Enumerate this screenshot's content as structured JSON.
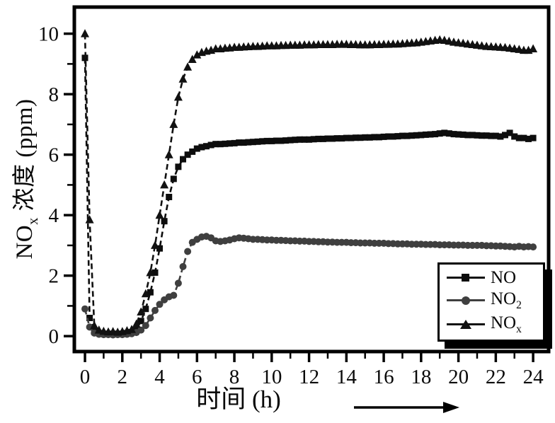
{
  "chart_data": {
    "type": "line",
    "title": "",
    "xlabel": "时间 (h)",
    "ylabel": "NOx 浓度 (ppm)",
    "ylabel_parts": {
      "base": "NO",
      "sub": "x",
      "rest": " 浓度 (ppm)"
    },
    "xlim": [
      -0.57,
      24.83
    ],
    "ylim": [
      -0.51,
      10.88
    ],
    "xticks": [
      0,
      2,
      4,
      6,
      8,
      10,
      12,
      14,
      16,
      18,
      20,
      22,
      24
    ],
    "yticks": [
      0,
      2,
      4,
      6,
      8,
      10
    ],
    "xminor": [
      1,
      3,
      5,
      7,
      9,
      11,
      13,
      15,
      17,
      19,
      21,
      23
    ],
    "yminor": [
      1,
      3,
      5,
      7,
      9
    ],
    "grid": false,
    "legend_position": "inside-bottom-right",
    "colors": {
      "no": "#0d0d0d",
      "no2": "#3f3f3f",
      "nox": "#111111",
      "axis": "#000000"
    },
    "x": [
      0,
      0.25,
      0.5,
      0.75,
      1,
      1.25,
      1.5,
      1.75,
      2,
      2.25,
      2.5,
      2.75,
      3,
      3.25,
      3.5,
      3.75,
      4,
      4.25,
      4.5,
      4.75,
      5,
      5.25,
      5.5,
      5.75,
      6,
      6.25,
      6.5,
      6.75,
      7,
      7.25,
      7.5,
      7.75,
      8,
      8.25,
      8.5,
      8.75,
      9,
      9.25,
      9.5,
      9.75,
      10,
      10.25,
      10.5,
      10.75,
      11,
      11.25,
      11.5,
      11.75,
      12,
      12.25,
      12.5,
      12.75,
      13,
      13.25,
      13.5,
      13.75,
      14,
      14.25,
      14.5,
      14.75,
      15,
      15.25,
      15.5,
      15.75,
      16,
      16.25,
      16.5,
      16.75,
      17,
      17.25,
      17.5,
      17.75,
      18,
      18.25,
      18.5,
      18.75,
      19,
      19.25,
      19.5,
      19.75,
      20,
      20.25,
      20.5,
      20.75,
      21,
      21.25,
      21.5,
      21.75,
      22,
      22.25,
      22.5,
      22.75,
      23,
      23.25,
      23.5,
      23.75,
      24
    ],
    "series": [
      {
        "name": "NO",
        "marker": "square",
        "color": "#0d0d0d",
        "values": [
          9.2,
          0.6,
          0.15,
          0.1,
          0.08,
          0.07,
          0.08,
          0.07,
          0.08,
          0.1,
          0.13,
          0.22,
          0.5,
          0.9,
          1.45,
          2.1,
          2.9,
          3.8,
          4.6,
          5.2,
          5.6,
          5.85,
          6.0,
          6.1,
          6.2,
          6.25,
          6.28,
          6.32,
          6.35,
          6.35,
          6.36,
          6.37,
          6.38,
          6.4,
          6.4,
          6.41,
          6.42,
          6.43,
          6.44,
          6.45,
          6.45,
          6.46,
          6.46,
          6.47,
          6.48,
          6.49,
          6.5,
          6.5,
          6.5,
          6.51,
          6.52,
          6.52,
          6.53,
          6.53,
          6.54,
          6.54,
          6.55,
          6.55,
          6.56,
          6.56,
          6.57,
          6.57,
          6.58,
          6.58,
          6.59,
          6.6,
          6.6,
          6.61,
          6.62,
          6.62,
          6.63,
          6.64,
          6.65,
          6.66,
          6.67,
          6.68,
          6.7,
          6.72,
          6.7,
          6.68,
          6.67,
          6.66,
          6.65,
          6.65,
          6.64,
          6.63,
          6.63,
          6.62,
          6.62,
          6.6,
          6.65,
          6.72,
          6.6,
          6.55,
          6.55,
          6.52,
          6.55
        ]
      },
      {
        "name": "NO2",
        "marker": "circle",
        "color": "#3f3f3f",
        "values": [
          0.9,
          0.3,
          0.1,
          0.06,
          0.05,
          0.05,
          0.04,
          0.05,
          0.05,
          0.06,
          0.08,
          0.12,
          0.2,
          0.35,
          0.6,
          0.85,
          1.05,
          1.2,
          1.3,
          1.35,
          1.75,
          2.3,
          2.8,
          3.1,
          3.2,
          3.28,
          3.3,
          3.25,
          3.15,
          3.13,
          3.15,
          3.18,
          3.22,
          3.25,
          3.24,
          3.22,
          3.2,
          3.2,
          3.19,
          3.18,
          3.18,
          3.17,
          3.17,
          3.16,
          3.15,
          3.15,
          3.14,
          3.14,
          3.13,
          3.13,
          3.12,
          3.12,
          3.11,
          3.11,
          3.1,
          3.1,
          3.1,
          3.09,
          3.09,
          3.08,
          3.08,
          3.08,
          3.07,
          3.07,
          3.07,
          3.06,
          3.06,
          3.05,
          3.05,
          3.05,
          3.04,
          3.04,
          3.04,
          3.03,
          3.03,
          3.03,
          3.02,
          3.02,
          3.02,
          3.01,
          3.01,
          3.01,
          3.0,
          3.0,
          3.0,
          3.0,
          2.99,
          2.99,
          2.98,
          2.98,
          2.97,
          2.96,
          2.95,
          2.97,
          2.95,
          2.96,
          2.95
        ]
      },
      {
        "name": "NOx",
        "marker": "triangle",
        "color": "#111111",
        "values": [
          10.0,
          3.85,
          0.35,
          0.2,
          0.16,
          0.14,
          0.15,
          0.13,
          0.15,
          0.18,
          0.22,
          0.4,
          0.8,
          1.4,
          2.1,
          3.0,
          4.0,
          5.0,
          6.0,
          7.0,
          7.9,
          8.5,
          8.9,
          9.15,
          9.3,
          9.38,
          9.42,
          9.45,
          9.5,
          9.5,
          9.52,
          9.53,
          9.55,
          9.55,
          9.56,
          9.57,
          9.58,
          9.58,
          9.59,
          9.6,
          9.6,
          9.6,
          9.61,
          9.61,
          9.62,
          9.62,
          9.62,
          9.63,
          9.63,
          9.63,
          9.64,
          9.64,
          9.64,
          9.64,
          9.65,
          9.65,
          9.65,
          9.64,
          9.64,
          9.63,
          9.63,
          9.63,
          9.64,
          9.64,
          9.65,
          9.65,
          9.66,
          9.66,
          9.67,
          9.68,
          9.69,
          9.7,
          9.72,
          9.74,
          9.76,
          9.78,
          9.8,
          9.78,
          9.75,
          9.72,
          9.7,
          9.68,
          9.66,
          9.64,
          9.62,
          9.6,
          9.58,
          9.57,
          9.56,
          9.55,
          9.54,
          9.52,
          9.5,
          9.48,
          9.45,
          9.45,
          9.5
        ]
      }
    ],
    "legend": {
      "entries": [
        {
          "base": "NO",
          "sub": ""
        },
        {
          "base": "NO",
          "sub": "2"
        },
        {
          "base": "NO",
          "sub": "x"
        }
      ]
    },
    "arrow_annotation": "right-arrow-below-x-axis"
  }
}
